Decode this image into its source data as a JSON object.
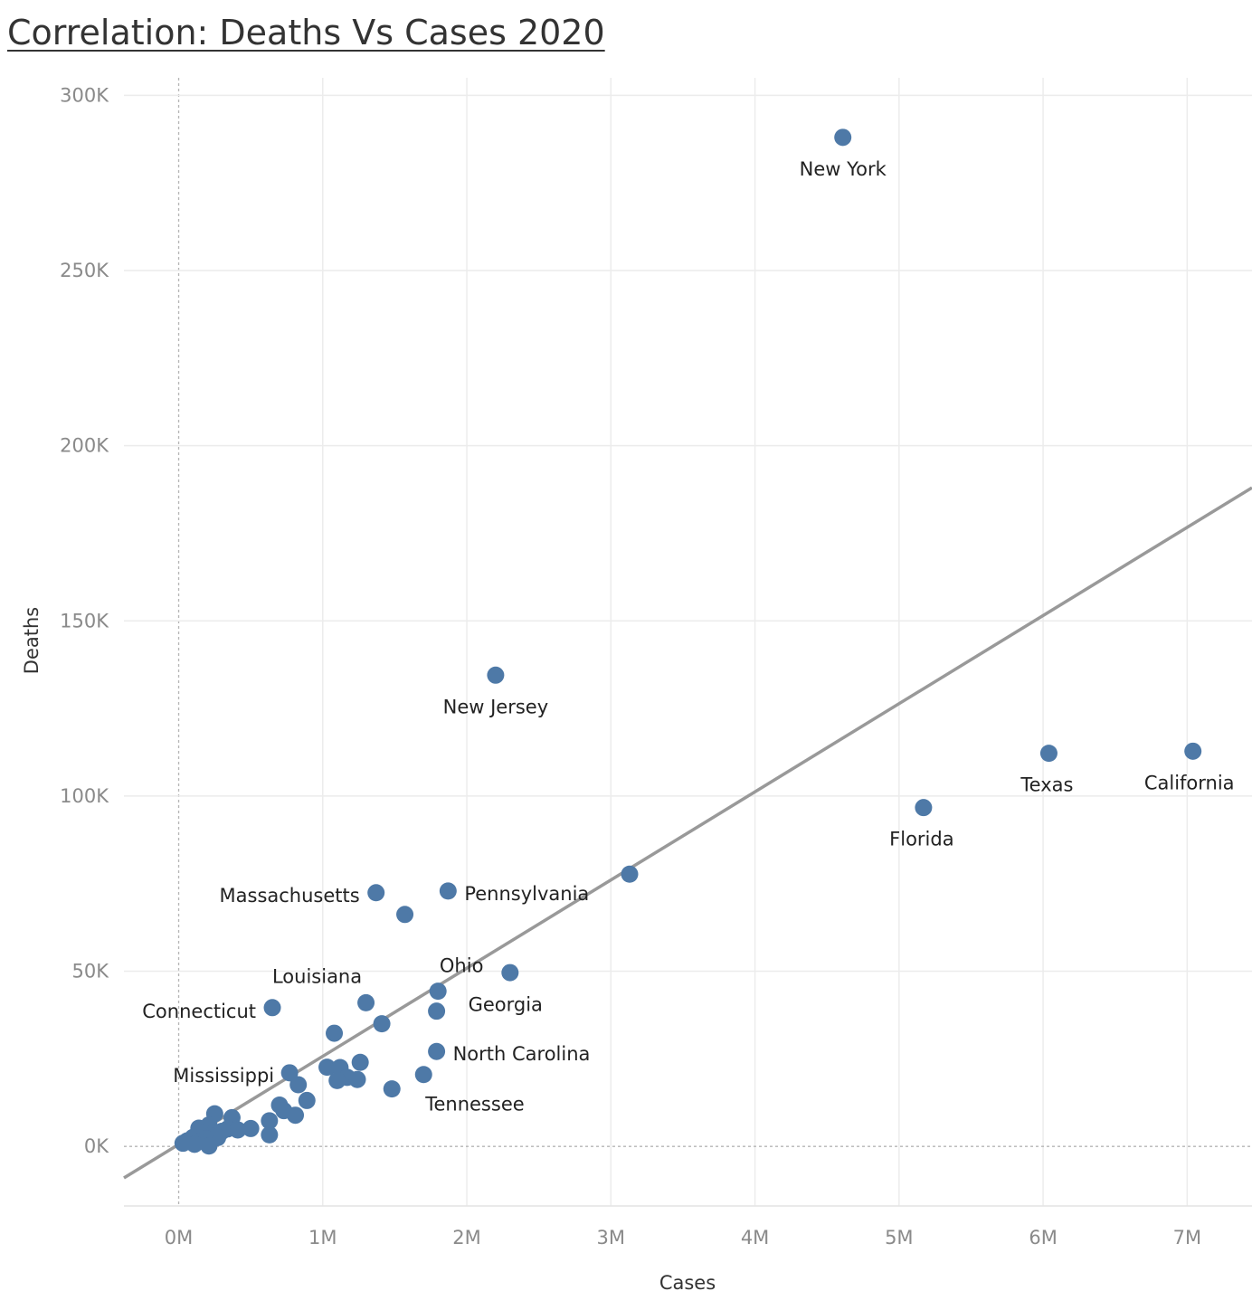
{
  "chart_data": {
    "type": "scatter",
    "title": "Correlation: Deaths Vs Cases 2020",
    "xlabel": "Cases",
    "ylabel": "Deaths",
    "xlim": [
      -0.38,
      7.45
    ],
    "ylim": [
      -17000,
      305000
    ],
    "x_unit": "millions of cases",
    "x_ticks": [
      0,
      1,
      2,
      3,
      4,
      5,
      6,
      7
    ],
    "x_tick_labels": [
      "0M",
      "1M",
      "2M",
      "3M",
      "4M",
      "5M",
      "6M",
      "7M"
    ],
    "y_ticks": [
      0,
      50000,
      100000,
      150000,
      200000,
      250000,
      300000
    ],
    "y_tick_labels": [
      "0K",
      "50K",
      "100K",
      "150K",
      "200K",
      "250K",
      "300K"
    ],
    "grid": true,
    "color": "#4e79a7",
    "trend_line": {
      "x": [
        -0.38,
        7.45
      ],
      "y": [
        -9000,
        188000
      ],
      "color": "#999999"
    },
    "points": [
      {
        "x": 4.61,
        "y": 288000,
        "label": "New York"
      },
      {
        "x": 2.2,
        "y": 134500,
        "label": "New Jersey"
      },
      {
        "x": 7.04,
        "y": 112800,
        "label": "California"
      },
      {
        "x": 6.04,
        "y": 112200,
        "label": "Texas"
      },
      {
        "x": 5.17,
        "y": 96700,
        "label": "Florida"
      },
      {
        "x": 3.13,
        "y": 77700
      },
      {
        "x": 1.87,
        "y": 72900,
        "label": "Pennsylvania"
      },
      {
        "x": 1.37,
        "y": 72400,
        "label": "Massachusetts"
      },
      {
        "x": 1.57,
        "y": 66200
      },
      {
        "x": 2.3,
        "y": 49600
      },
      {
        "x": 1.8,
        "y": 44300,
        "label": "Ohio"
      },
      {
        "x": 1.3,
        "y": 41000,
        "label": "Louisiana"
      },
      {
        "x": 0.65,
        "y": 39600,
        "label": "Connecticut"
      },
      {
        "x": 1.79,
        "y": 38600,
        "label": "Georgia"
      },
      {
        "x": 1.41,
        "y": 35000
      },
      {
        "x": 1.08,
        "y": 32300
      },
      {
        "x": 1.79,
        "y": 27100,
        "label": "North Carolina"
      },
      {
        "x": 1.26,
        "y": 24000
      },
      {
        "x": 1.03,
        "y": 22600
      },
      {
        "x": 1.12,
        "y": 22500
      },
      {
        "x": 0.77,
        "y": 21000,
        "label": "Mississippi"
      },
      {
        "x": 1.7,
        "y": 20500
      },
      {
        "x": 1.17,
        "y": 19700
      },
      {
        "x": 1.24,
        "y": 19100
      },
      {
        "x": 1.1,
        "y": 18800
      },
      {
        "x": 0.83,
        "y": 17600
      },
      {
        "x": 1.48,
        "y": 16400,
        "label": "Tennessee"
      },
      {
        "x": 0.89,
        "y": 13100
      },
      {
        "x": 0.7,
        "y": 11800
      },
      {
        "x": 0.73,
        "y": 10200
      },
      {
        "x": 0.81,
        "y": 8900
      },
      {
        "x": 0.25,
        "y": 9300
      },
      {
        "x": 0.37,
        "y": 8200
      },
      {
        "x": 0.63,
        "y": 7300
      },
      {
        "x": 0.21,
        "y": 6100
      },
      {
        "x": 0.14,
        "y": 5200
      },
      {
        "x": 0.5,
        "y": 5100
      },
      {
        "x": 0.34,
        "y": 5000
      },
      {
        "x": 0.41,
        "y": 4700
      },
      {
        "x": 0.3,
        "y": 4300
      },
      {
        "x": 0.17,
        "y": 3900
      },
      {
        "x": 0.63,
        "y": 3300
      },
      {
        "x": 0.22,
        "y": 3000
      },
      {
        "x": 0.1,
        "y": 2600
      },
      {
        "x": 0.27,
        "y": 2500
      },
      {
        "x": 0.19,
        "y": 2200
      },
      {
        "x": 0.06,
        "y": 1600
      },
      {
        "x": 0.14,
        "y": 1400
      },
      {
        "x": 0.03,
        "y": 900
      },
      {
        "x": 0.11,
        "y": 600
      },
      {
        "x": 0.21,
        "y": 100
      }
    ]
  }
}
